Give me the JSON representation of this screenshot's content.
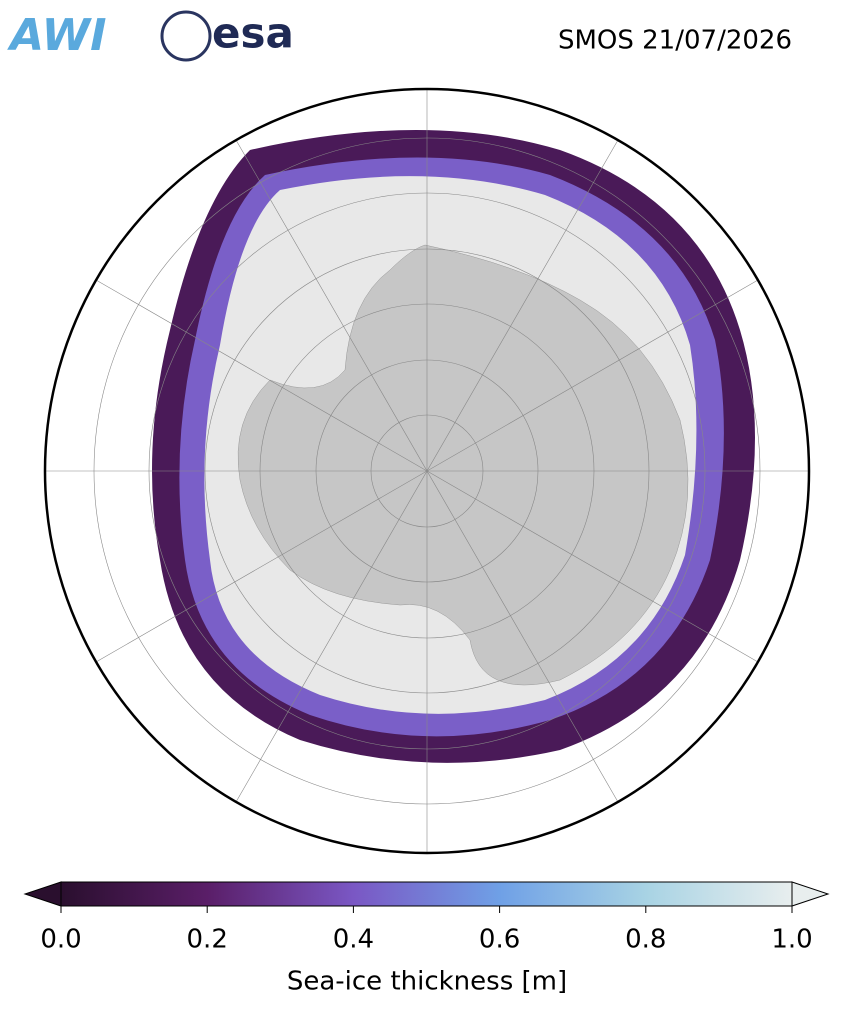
{
  "header": {
    "logos": [
      "AWI",
      "esa"
    ],
    "title": "SMOS 21/07/2026"
  },
  "colorbar": {
    "label": "Sea-ice thickness [m]",
    "lim": [
      0,
      1
    ],
    "ticks": [
      {
        "value": 0,
        "label": "0.0"
      },
      0.2,
      0.4,
      0.6,
      0.8,
      {
        "value": 1,
        "label": "1.0"
      }
    ],
    "colors": [
      "#2a0f2e",
      "#5a1e68",
      "#7a57c4",
      "#6fa0e6",
      "#a8d3e4",
      "#e8eeee"
    ]
  }
}
